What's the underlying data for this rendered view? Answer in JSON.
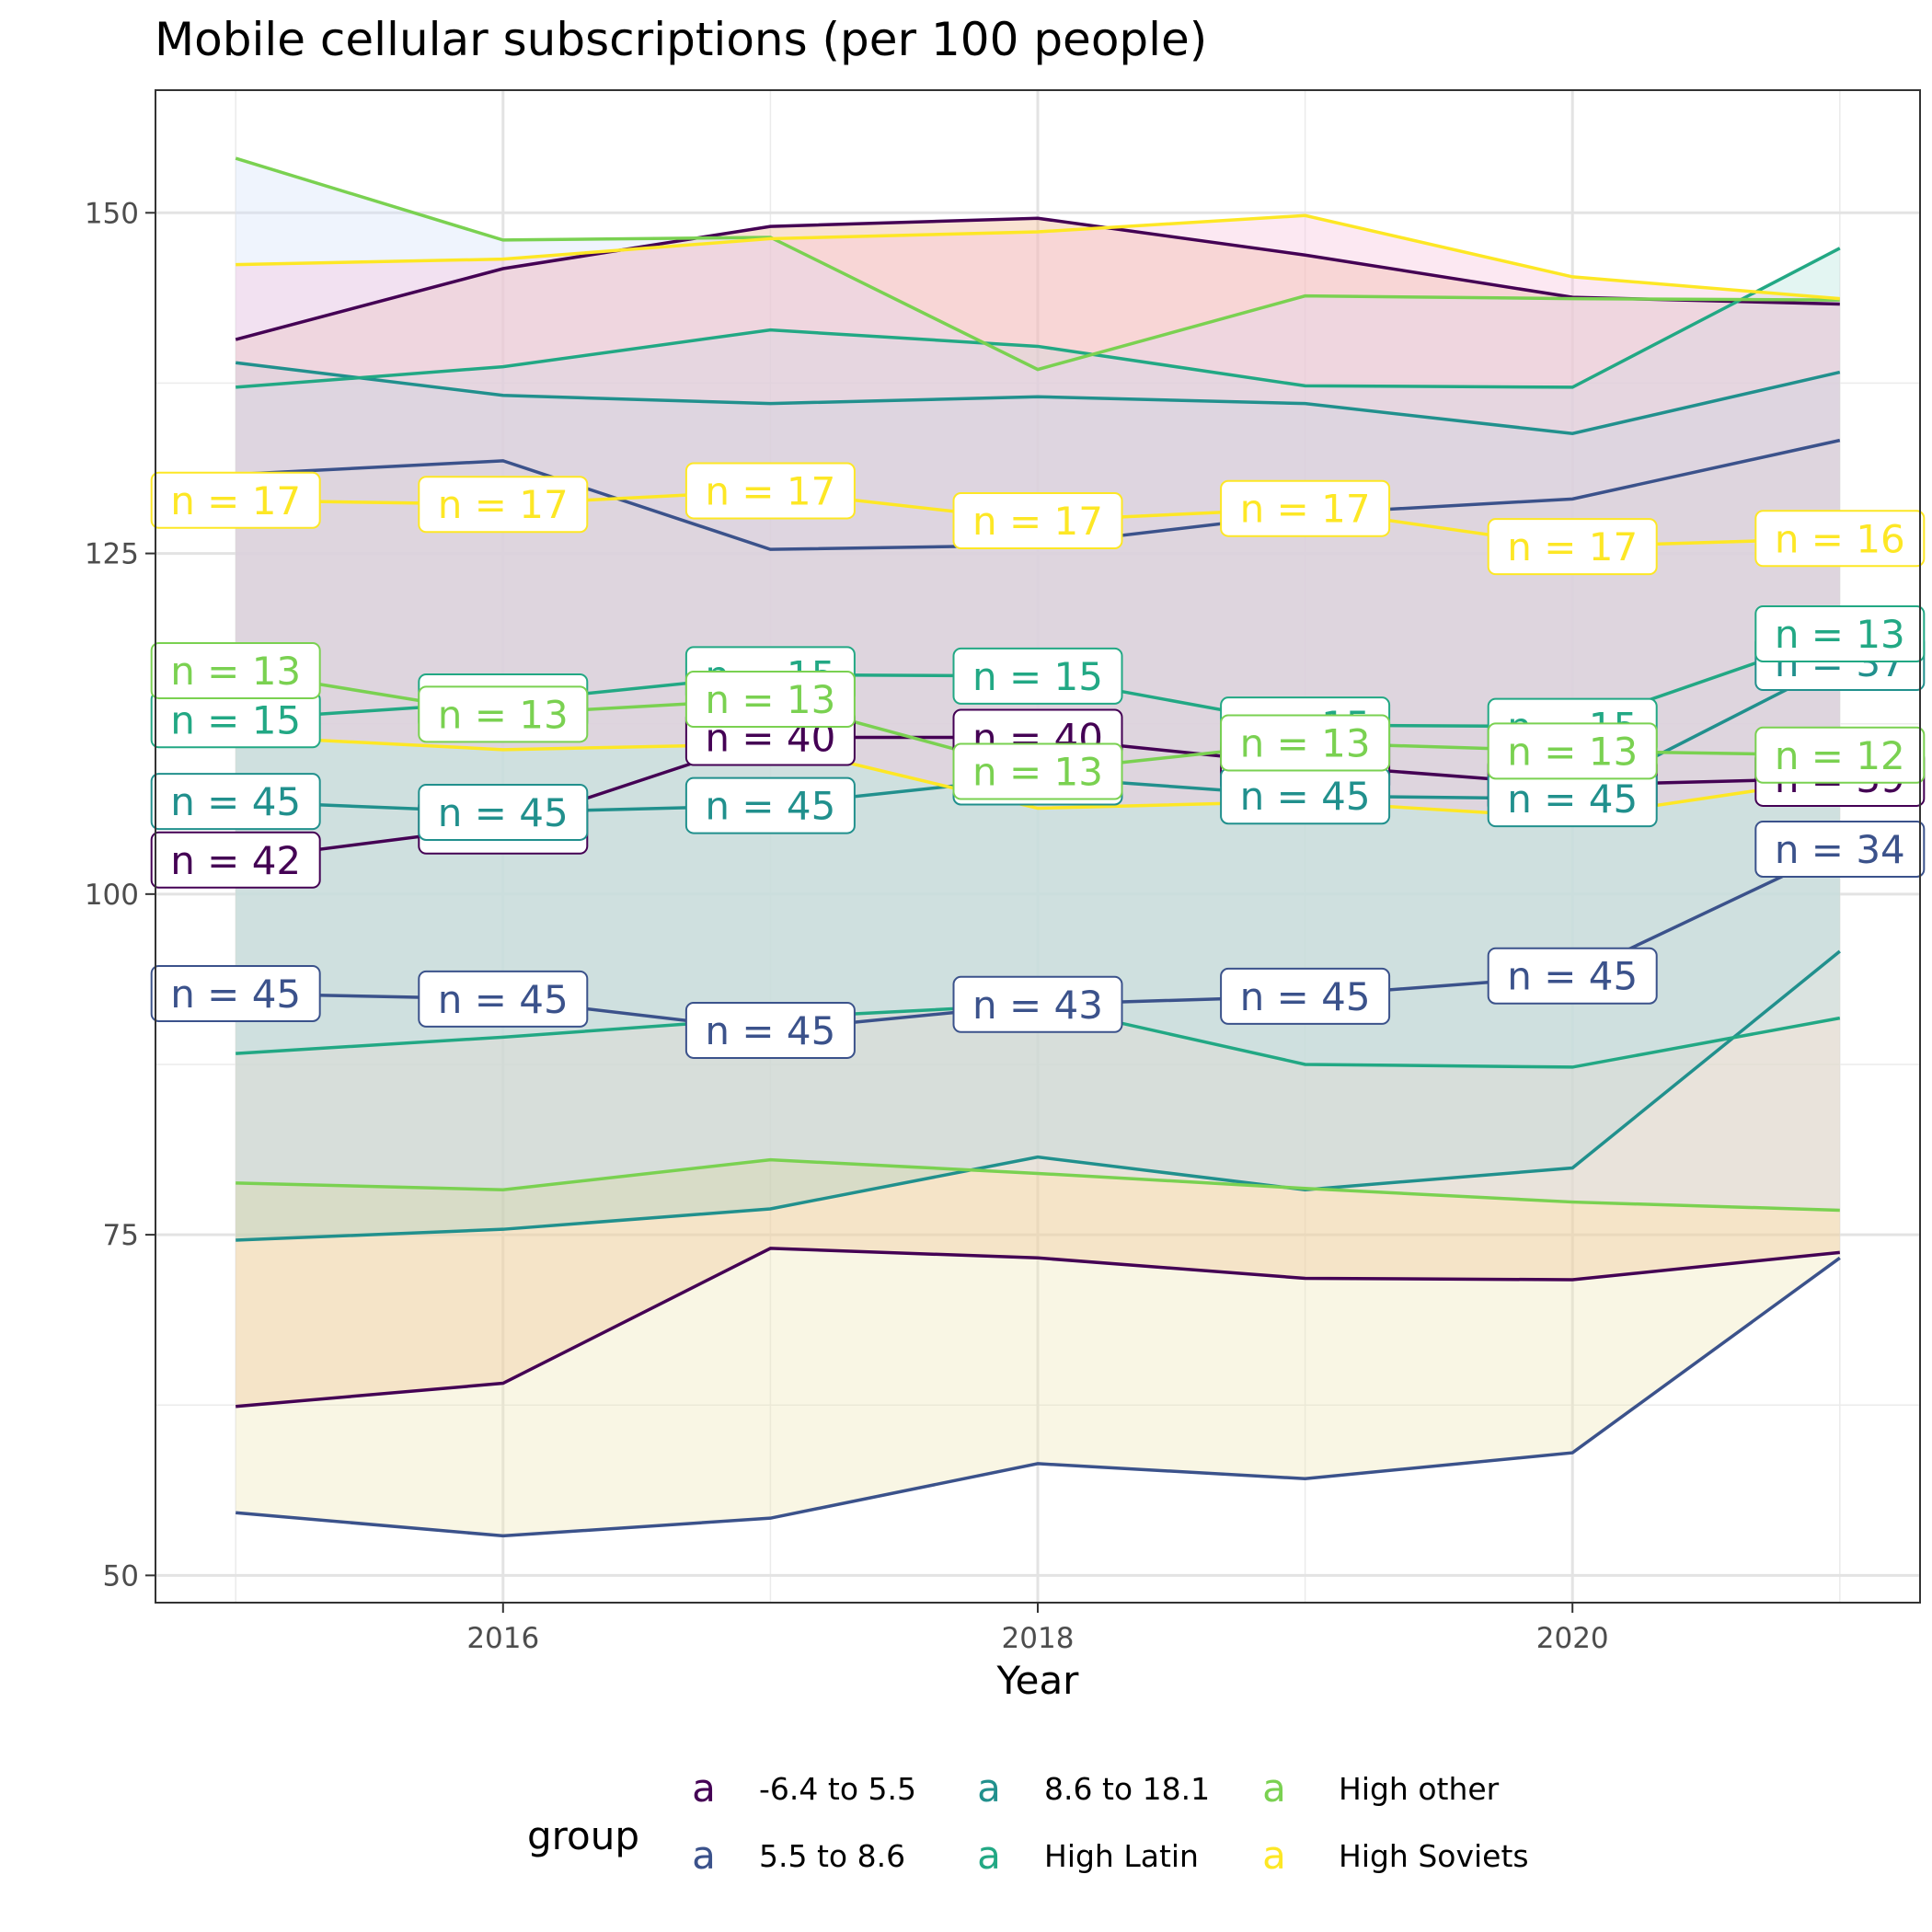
{
  "chart_data": {
    "type": "line",
    "title": "Mobile cellular subscriptions (per 100 people)",
    "xlabel": "Year",
    "ylabel": "",
    "x": [
      2015,
      2016,
      2017,
      2018,
      2019,
      2020,
      2021
    ],
    "xlim": [
      2014.7,
      2021.3
    ],
    "ylim": [
      48,
      159
    ],
    "x_ticks": [
      2016,
      2018,
      2020
    ],
    "y_ticks": [
      50,
      75,
      100,
      125,
      150
    ],
    "grid": true,
    "legend": {
      "title": "group",
      "placement": "bottom",
      "key_glyph": "a",
      "entries": [
        "-6.4 to 5.5",
        "5.5 to 8.6",
        "8.6 to 18.1",
        "High Latin",
        "High other",
        "High Soviets"
      ]
    },
    "series": [
      {
        "name": "-6.4 to 5.5",
        "color": "#440154",
        "band_fill": "#f0b48a",
        "upper": [
          140.7,
          145.9,
          149.0,
          149.6,
          146.9,
          143.8,
          143.3
        ],
        "lower": [
          62.4,
          64.1,
          74.0,
          73.3,
          71.8,
          71.7,
          73.7
        ],
        "mean": [
          102.5,
          105.0,
          111.5,
          111.5,
          109.5,
          108.0,
          108.5
        ],
        "n_labels": [
          "n = 42",
          "n = 40",
          "n = 40",
          "n = 40",
          "n = 40",
          "n = 40",
          "n = 39"
        ]
      },
      {
        "name": "5.5 to 8.6",
        "color": "#3b528b",
        "band_fill": "#eee8b8",
        "upper": [
          130.8,
          131.8,
          125.3,
          125.6,
          127.9,
          129.0,
          133.3
        ],
        "lower": [
          54.6,
          52.9,
          54.2,
          58.2,
          57.1,
          59.0,
          73.3
        ],
        "mean": [
          92.7,
          92.3,
          90.0,
          91.9,
          92.5,
          94.0,
          103.3
        ],
        "n_labels": [
          "n = 45",
          "n = 45",
          "n = 45",
          "n = 43",
          "n = 45",
          "n = 45",
          "n = 34"
        ]
      },
      {
        "name": "8.6 to 18.1",
        "color": "#21908d",
        "band_fill": "#a8cfc4",
        "upper": [
          139.0,
          136.6,
          136.0,
          136.5,
          136.0,
          133.8,
          138.3
        ],
        "lower": [
          74.6,
          75.4,
          76.9,
          80.7,
          78.3,
          79.9,
          95.8
        ],
        "mean": [
          106.8,
          106.0,
          106.5,
          108.6,
          107.2,
          107.0,
          117.0
        ],
        "n_labels": [
          "n = 45",
          "n = 45",
          "n = 45",
          "n = 45",
          "n = 45",
          "n = 45",
          "n = 37"
        ]
      },
      {
        "name": "High Latin",
        "color": "#22a884",
        "band_fill": "#b5e6dc",
        "upper": [
          137.2,
          138.7,
          141.4,
          140.2,
          137.3,
          137.2,
          147.4
        ],
        "lower": [
          88.3,
          89.5,
          90.9,
          91.9,
          87.5,
          87.3,
          90.9
        ],
        "mean": [
          112.8,
          114.1,
          116.1,
          116.0,
          112.4,
          112.3,
          119.1
        ],
        "n_labels": [
          "n = 15",
          "n = 15",
          "n = 15",
          "n = 15",
          "n = 15",
          "n = 15",
          "n = 13"
        ]
      },
      {
        "name": "High other",
        "color": "#7ad151",
        "band_fill": "#d6e3fb",
        "upper": [
          154.0,
          148.0,
          148.2,
          138.5,
          143.9,
          143.7,
          143.6
        ],
        "lower": [
          78.8,
          78.3,
          80.5,
          79.5,
          78.4,
          77.4,
          76.8
        ],
        "mean": [
          116.4,
          113.2,
          114.3,
          109.0,
          111.1,
          110.5,
          110.2
        ],
        "n_labels": [
          "n = 13",
          "n = 13",
          "n = 13",
          "n = 13",
          "n = 13",
          "n = 13",
          "n = 12"
        ]
      },
      {
        "name": "High Soviets",
        "color": "#fde725",
        "band_fill": "#f7c2dc",
        "upper": [
          146.2,
          146.6,
          148.1,
          148.6,
          149.8,
          145.3,
          143.7
        ],
        "lower": [
          111.6,
          110.6,
          111.0,
          106.3,
          106.8,
          105.6,
          108.5
        ],
        "mean": [
          128.9,
          128.6,
          129.6,
          127.4,
          128.3,
          125.5,
          126.1
        ],
        "n_labels": [
          "n = 17",
          "n = 17",
          "n = 17",
          "n = 17",
          "n = 17",
          "n = 17",
          "n = 16"
        ]
      }
    ]
  }
}
